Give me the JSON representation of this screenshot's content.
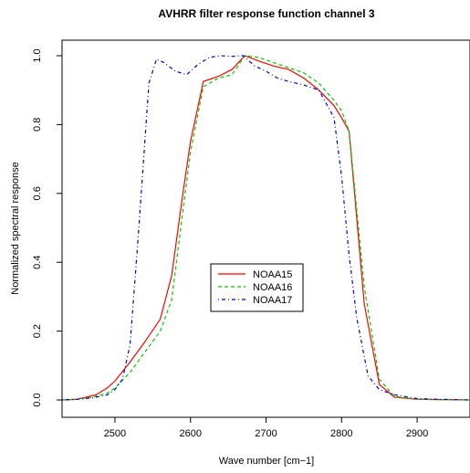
{
  "chart_data": {
    "type": "line",
    "title": "AVHRR filter response function channel 3",
    "xlabel": "Wave number [cm−1]",
    "ylabel": "Normalized spectral response",
    "xlim": [
      2430,
      2970
    ],
    "ylim": [
      0.0,
      1.0
    ],
    "x_ticks": [
      2500,
      2600,
      2700,
      2800,
      2900
    ],
    "y_ticks": [
      0.0,
      0.2,
      0.4,
      0.6,
      0.8,
      1.0
    ],
    "x_tick_labels": [
      "2500",
      "2600",
      "2700",
      "2800",
      "2900"
    ],
    "y_tick_labels": [
      "0.0",
      "0.2",
      "0.4",
      "0.6",
      "0.8",
      "1.0"
    ],
    "legend": {
      "placement": "center",
      "entries": [
        "NOAA15",
        "NOAA16",
        "NOAA17"
      ]
    },
    "grid": false,
    "series": [
      {
        "name": "NOAA15",
        "color": "#ff0000",
        "linestyle": "solid",
        "x": [
          2430,
          2450,
          2475,
          2490,
          2500,
          2520,
          2540,
          2560,
          2575,
          2590,
          2600,
          2617,
          2637,
          2655,
          2672,
          2690,
          2710,
          2730,
          2750,
          2770,
          2790,
          2800,
          2810,
          2830,
          2850,
          2870,
          2900,
          2930,
          2970
        ],
        "y": [
          0.0,
          0.002,
          0.015,
          0.035,
          0.055,
          0.11,
          0.17,
          0.235,
          0.36,
          0.6,
          0.75,
          0.925,
          0.94,
          0.96,
          1.0,
          0.985,
          0.97,
          0.96,
          0.935,
          0.9,
          0.855,
          0.82,
          0.78,
          0.28,
          0.045,
          0.008,
          0.002,
          0.001,
          0.0
        ]
      },
      {
        "name": "NOAA16",
        "color": "#00cc00",
        "linestyle": "dashed",
        "x": [
          2430,
          2450,
          2470,
          2490,
          2500,
          2520,
          2540,
          2560,
          2575,
          2590,
          2600,
          2617,
          2637,
          2655,
          2672,
          2690,
          2710,
          2730,
          2750,
          2770,
          2790,
          2800,
          2810,
          2830,
          2850,
          2870,
          2900,
          2930,
          2970
        ],
        "y": [
          0.0,
          0.002,
          0.008,
          0.02,
          0.035,
          0.08,
          0.14,
          0.2,
          0.29,
          0.55,
          0.72,
          0.91,
          0.935,
          0.945,
          1.0,
          0.995,
          0.98,
          0.965,
          0.95,
          0.92,
          0.87,
          0.84,
          0.78,
          0.33,
          0.06,
          0.01,
          0.002,
          0.001,
          0.0
        ]
      },
      {
        "name": "NOAA17",
        "color": "#0000cc",
        "linestyle": "dashdot",
        "x": [
          2430,
          2450,
          2470,
          2490,
          2500,
          2510,
          2520,
          2530,
          2545,
          2555,
          2565,
          2580,
          2595,
          2610,
          2625,
          2640,
          2655,
          2670,
          2685,
          2700,
          2715,
          2730,
          2750,
          2770,
          2790,
          2800,
          2810,
          2820,
          2835,
          2850,
          2870,
          2900,
          2930,
          2970
        ],
        "y": [
          0.0,
          0.002,
          0.006,
          0.015,
          0.03,
          0.06,
          0.16,
          0.45,
          0.92,
          0.99,
          0.98,
          0.955,
          0.945,
          0.975,
          0.995,
          1.0,
          0.998,
          1.0,
          0.97,
          0.955,
          0.935,
          0.925,
          0.915,
          0.9,
          0.82,
          0.65,
          0.42,
          0.24,
          0.07,
          0.03,
          0.015,
          0.004,
          0.002,
          0.0
        ]
      }
    ]
  }
}
